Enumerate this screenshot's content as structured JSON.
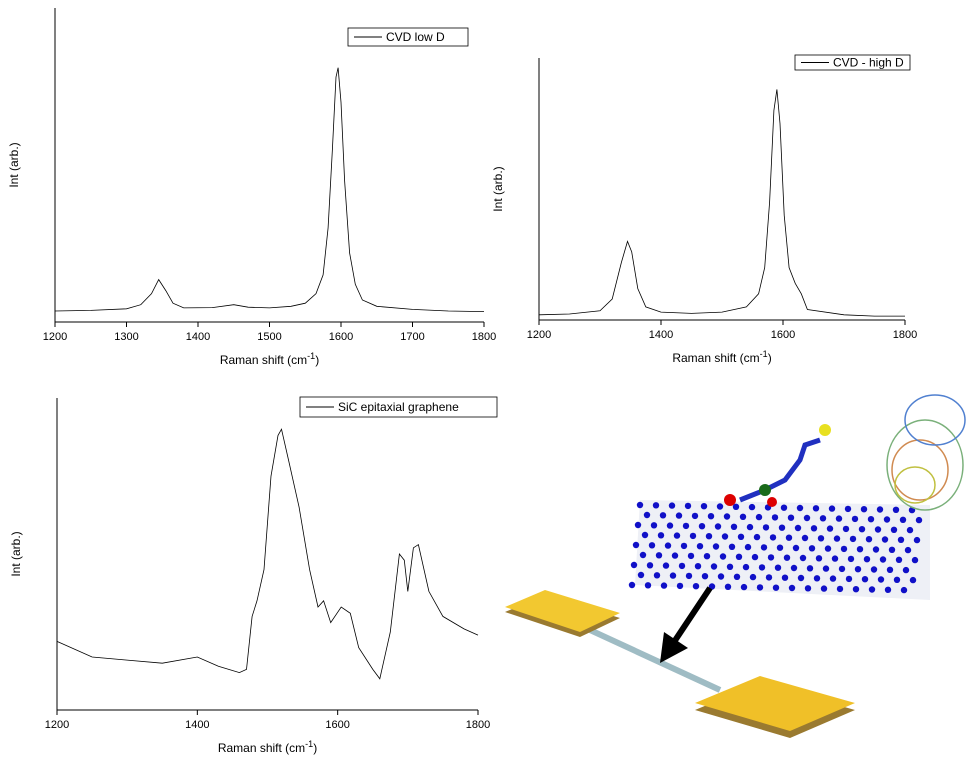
{
  "chart_data": [
    {
      "type": "line",
      "legend": "CVD low D",
      "ylabel": "Int (arb.)",
      "xlabel": [
        "Raman shift (cm",
        "-1",
        ")"
      ],
      "xlim": [
        1200,
        1800
      ],
      "xticks": [
        1200,
        1300,
        1400,
        1500,
        1600,
        1700,
        1800
      ],
      "ylim": [
        0,
        100
      ],
      "color": "#000000",
      "x": [
        1200,
        1250,
        1300,
        1320,
        1335,
        1345,
        1355,
        1365,
        1380,
        1420,
        1450,
        1470,
        1500,
        1530,
        1550,
        1565,
        1575,
        1582,
        1588,
        1593,
        1596,
        1600,
        1605,
        1612,
        1620,
        1630,
        1650,
        1700,
        1750,
        1800
      ],
      "values": [
        3.5,
        3.7,
        4.2,
        5.5,
        9,
        13.5,
        10,
        6,
        4.5,
        4.6,
        5.5,
        4.7,
        4.5,
        5,
        6,
        9,
        15,
        30,
        55,
        78,
        81,
        70,
        45,
        22,
        12,
        7,
        5,
        4,
        3.5,
        3.3
      ]
    },
    {
      "type": "line",
      "legend": "CVD - high D",
      "ylabel": "Int (arb.)",
      "xlabel": [
        "Raman shift (cm",
        "-1",
        ")"
      ],
      "xlim": [
        1200,
        1800
      ],
      "xticks": [
        1200,
        1400,
        1600,
        1800
      ],
      "ylim": [
        0,
        100
      ],
      "color": "#000000",
      "x": [
        1200,
        1250,
        1300,
        1320,
        1335,
        1345,
        1352,
        1362,
        1375,
        1400,
        1450,
        1500,
        1540,
        1560,
        1570,
        1578,
        1585,
        1590,
        1595,
        1602,
        1610,
        1620,
        1630,
        1640,
        1700,
        1750,
        1800
      ],
      "values": [
        2,
        2.3,
        3.5,
        8,
        22,
        30,
        26,
        12,
        5,
        3,
        2.5,
        3,
        5,
        10,
        20,
        45,
        80,
        88,
        75,
        40,
        20,
        14,
        10,
        4,
        2,
        1.5,
        1.5
      ]
    },
    {
      "type": "line",
      "legend": "SiC epitaxial graphene",
      "ylabel": "Int (arb.)",
      "xlabel": [
        "Raman shift (cm",
        "-1",
        ")"
      ],
      "xlim": [
        1200,
        1800
      ],
      "xticks": [
        1200,
        1400,
        1600,
        1800
      ],
      "ylim": [
        0,
        100
      ],
      "color": "#000000",
      "x": [
        1200,
        1250,
        1300,
        1350,
        1400,
        1430,
        1460,
        1470,
        1478,
        1485,
        1495,
        1505,
        1515,
        1520,
        1530,
        1545,
        1560,
        1572,
        1580,
        1590,
        1605,
        1618,
        1630,
        1650,
        1660,
        1675,
        1688,
        1695,
        1700,
        1708,
        1715,
        1730,
        1750,
        1780,
        1800
      ],
      "values": [
        22,
        17,
        16,
        15,
        17,
        14,
        12,
        13,
        30,
        35,
        45,
        75,
        88,
        90,
        80,
        65,
        45,
        33,
        35,
        28,
        33,
        31,
        20,
        13,
        10,
        25,
        50,
        48,
        38,
        52,
        53,
        38,
        30,
        26,
        24
      ]
    }
  ]
}
